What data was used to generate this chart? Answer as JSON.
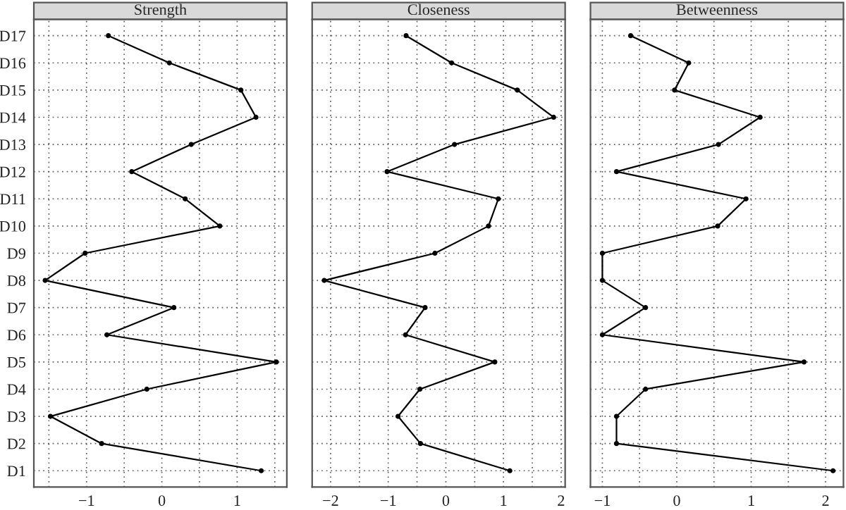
{
  "chart_data": [
    {
      "type": "line",
      "title": "Strength",
      "orientation": "horizontal",
      "categories": [
        "D17",
        "D16",
        "D15",
        "D14",
        "D13",
        "D12",
        "D11",
        "D10",
        "D9",
        "D8",
        "D7",
        "D6",
        "D5",
        "D4",
        "D3",
        "D2",
        "D1"
      ],
      "tick_labels": "xy",
      "series": [
        {
          "color": "#000000",
          "values": [
            -0.71,
            0.1,
            1.05,
            1.25,
            0.39,
            -0.4,
            0.31,
            0.77,
            -1.02,
            -1.55,
            0.16,
            -0.73,
            1.52,
            -0.2,
            -1.48,
            -0.8,
            1.32
          ]
        }
      ],
      "xlim": [
        -1.7,
        1.66
      ],
      "xticks": [
        -1,
        0,
        1
      ],
      "grid": true,
      "marker": "circle",
      "line_style": "solid"
    },
    {
      "type": "line",
      "title": "Closeness",
      "orientation": "horizontal",
      "tick_labels": "x",
      "series": [
        {
          "color": "#000000",
          "values": [
            -0.69,
            0.1,
            1.24,
            1.87,
            0.15,
            -1.02,
            0.91,
            0.74,
            -0.19,
            -2.11,
            -0.36,
            -0.7,
            0.85,
            -0.45,
            -0.83,
            -0.44,
            1.11
          ]
        }
      ],
      "xlim": [
        -2.32,
        2.07
      ],
      "xticks": [
        -2,
        -1,
        0,
        1,
        2
      ],
      "grid": true,
      "marker": "circle",
      "line_style": "solid"
    },
    {
      "type": "line",
      "title": "Betweenness",
      "orientation": "horizontal",
      "tick_labels": "x",
      "series": [
        {
          "color": "#000000",
          "values": [
            -0.62,
            0.16,
            -0.03,
            1.12,
            0.56,
            -0.81,
            0.93,
            0.55,
            -1.0,
            -1.0,
            -0.42,
            -1.0,
            1.71,
            -0.42,
            -0.81,
            -0.81,
            2.1
          ]
        }
      ],
      "xlim": [
        -1.16,
        2.24
      ],
      "xticks": [
        -1,
        0,
        1,
        2
      ],
      "grid": true,
      "marker": "circle",
      "line_style": "solid"
    }
  ]
}
